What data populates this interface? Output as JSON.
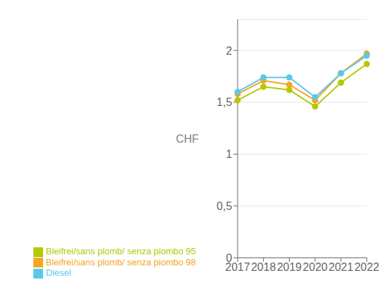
{
  "chart_data": {
    "type": "line",
    "categories": [
      "2017",
      "2018",
      "2019",
      "2020",
      "2021",
      "2022"
    ],
    "series": [
      {
        "name": "Bleifrei/sans plomb/ senza piombo 95",
        "color": "#b5c800",
        "marker": "circle",
        "values": [
          1.52,
          1.65,
          1.62,
          1.46,
          1.69,
          1.87
        ]
      },
      {
        "name": "Bleifrei/sans plomb/ senza piombo 98",
        "color": "#f5a623",
        "marker": "circle",
        "values": [
          1.58,
          1.71,
          1.67,
          1.52,
          1.78,
          1.97
        ]
      },
      {
        "name": "Diesel",
        "color": "#5bc8e8",
        "marker": "circle",
        "values": [
          1.6,
          1.74,
          1.74,
          1.55,
          1.78,
          1.95
        ]
      }
    ],
    "y_label": "CHF",
    "ylim": [
      0,
      2.3
    ],
    "yticks": [
      0,
      {
        "value": 0.5,
        "label": "0,5"
      },
      1,
      {
        "value": 1.5,
        "label": "1,5"
      },
      2
    ],
    "grid": true,
    "legend": "lower left"
  }
}
